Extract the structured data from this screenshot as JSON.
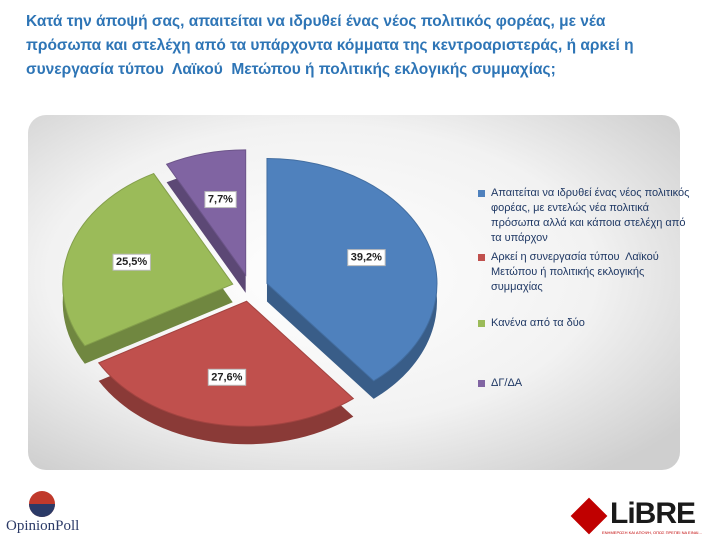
{
  "chart_data": {
    "type": "pie",
    "title": "Κατά την άποψή σας, απαιτείται να ιδρυθεί ένας νέος πολιτικός φορέας, με νέα πρόσωπα και στελέχη από τα υπάρχοντα κόμματα της κεντροαριστεράς, ή αρκεί η συνεργασία τύπου  Λαϊκού  Μετώπου ή πολιτικής εκλογικής συμμαχίας;",
    "categories": [
      "Απαιτείται να ιδρυθεί ένας νέος πολιτικός φορέας, με εντελώς νέα πολιτικά πρόσωπα αλλά και κάποια στελέχη από τα υπάρχον",
      "Αρκεί η συνεργασία τύπου  Λαϊκού Μετώπου ή πολιτικής εκλογικής συμμαχίας",
      "Κανένα από τα δύο",
      "ΔΓ/ΔΑ"
    ],
    "values": [
      39.2,
      27.6,
      25.5,
      7.7
    ],
    "value_labels": [
      "39,2%",
      "27,6%",
      "25,5%",
      "7,7%"
    ],
    "colors": [
      "#4f81bd",
      "#c0504d",
      "#9bbb59",
      "#8064a2"
    ],
    "legend": "right"
  },
  "logos": {
    "left": "OpinionPoll",
    "right": "LiBRE",
    "right_tagline": "ΕΝΗΜΕΡΩΣΗ ΚΑΙ ΑΠΟΨΗ, ΟΠΩΣ ΠΡΕΠΕΙ ΝΑ ΕΙΝΑΙ..."
  }
}
